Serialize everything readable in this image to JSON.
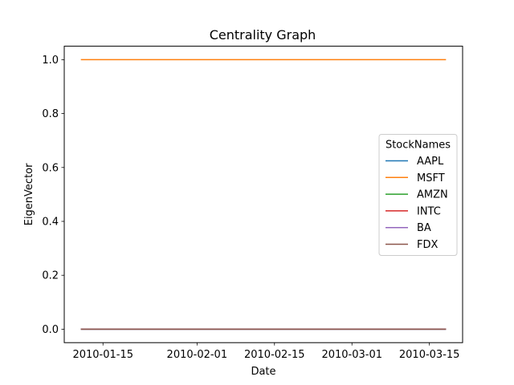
{
  "chart_data": {
    "type": "line",
    "title": "Centrality Graph",
    "xlabel": "Date",
    "ylabel": "EigenVector",
    "x": [
      "2010-01-11",
      "2010-03-18"
    ],
    "xlim": [
      "2010-01-08",
      "2010-03-21"
    ],
    "xticks": [
      "2010-01-15",
      "2010-02-01",
      "2010-02-15",
      "2010-03-01",
      "2010-03-15"
    ],
    "ylim": [
      -0.05,
      1.05
    ],
    "yticks": [
      "0.0",
      "0.2",
      "0.4",
      "0.6",
      "0.8",
      "1.0"
    ],
    "grid": false,
    "legend": {
      "title": "StockNames",
      "placement": "center-right"
    },
    "series": [
      {
        "name": "AAPL",
        "color": "#1f77b4",
        "values": [
          0,
          0
        ]
      },
      {
        "name": "MSFT",
        "color": "#ff7f0e",
        "values": [
          1,
          1
        ]
      },
      {
        "name": "AMZN",
        "color": "#2ca02c",
        "values": [
          0,
          0
        ]
      },
      {
        "name": "INTC",
        "color": "#d62728",
        "values": [
          0,
          0
        ]
      },
      {
        "name": "BA",
        "color": "#9467bd",
        "values": [
          0,
          0
        ]
      },
      {
        "name": "FDX",
        "color": "#8c564b",
        "values": [
          0,
          0
        ]
      }
    ]
  }
}
